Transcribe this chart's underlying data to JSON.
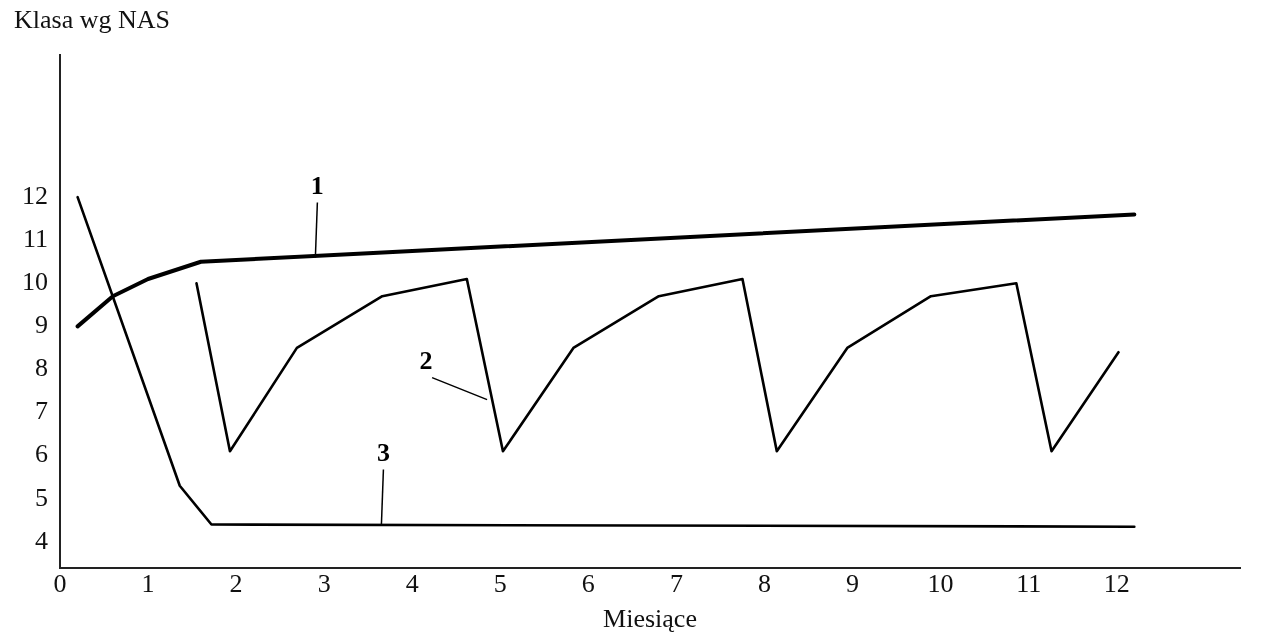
{
  "chart_data": {
    "type": "line",
    "xlabel": "Miesiące",
    "ylabel": "Klasa wg NAS",
    "xlim": [
      0,
      13.4
    ],
    "ylim": [
      3.4,
      15.3
    ],
    "xticks": [
      0,
      1,
      2,
      3,
      4,
      5,
      6,
      7,
      8,
      9,
      10,
      11,
      12
    ],
    "yticks": [
      4,
      5,
      6,
      7,
      8,
      9,
      10,
      11,
      12
    ],
    "grid": false,
    "legend": false,
    "marker": "none",
    "line_style": "solid",
    "series": [
      {
        "color": "#000000",
        "x": [
          0.2,
          0.6,
          1.0,
          1.6,
          12.2
        ],
        "values": [
          9.0,
          9.7,
          10.1,
          10.5,
          11.6
        ]
      },
      {
        "color": "#000000",
        "x": [
          1.55,
          1.93,
          2.69,
          3.66,
          4.62,
          5.03,
          5.83,
          6.8,
          7.75,
          8.14,
          8.94,
          9.89,
          10.86,
          11.26,
          12.02
        ],
        "values": [
          10.0,
          6.1,
          8.5,
          9.7,
          10.1,
          6.1,
          8.5,
          9.7,
          10.1,
          6.1,
          8.5,
          9.7,
          10.0,
          6.1,
          8.4
        ]
      },
      {
        "color": "#000000",
        "x": [
          0.2,
          1.36,
          1.72,
          12.2
        ],
        "values": [
          12.0,
          5.3,
          4.4,
          4.35
        ]
      }
    ],
    "annotations": [
      {
        "text": "1",
        "x": 2.9,
        "y": 10.6
      },
      {
        "text": "2",
        "x": 4.85,
        "y": 7.3
      },
      {
        "text": "3",
        "x": 3.65,
        "y": 4.4
      }
    ]
  }
}
